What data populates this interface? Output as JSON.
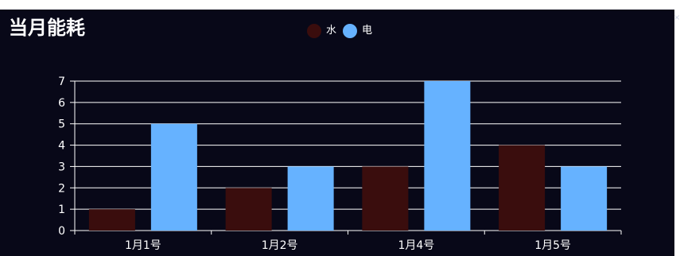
{
  "title": "当月能耗",
  "close_label": "×",
  "legend": [
    {
      "name": "水",
      "color": "#3a0d0d"
    },
    {
      "name": "电",
      "color": "#66b2ff"
    }
  ],
  "chart_data": {
    "type": "bar",
    "title": "当月能耗",
    "categories": [
      "1月1号",
      "1月2号",
      "1月4号",
      "1月5号"
    ],
    "series": [
      {
        "name": "水",
        "color": "#3a0d0d",
        "values": [
          1,
          2,
          3,
          4
        ]
      },
      {
        "name": "电",
        "color": "#66b2ff",
        "values": [
          5,
          3,
          7,
          3
        ]
      }
    ],
    "xlabel": "",
    "ylabel": "",
    "ylim": [
      0,
      7
    ],
    "yticks": [
      0,
      1,
      2,
      3,
      4,
      5,
      6,
      7
    ],
    "grid": true,
    "legend_position": "top"
  }
}
